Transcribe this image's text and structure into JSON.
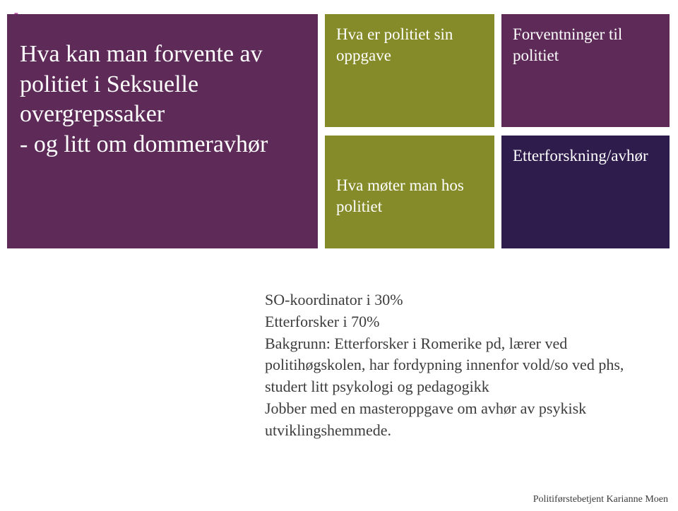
{
  "plus_glyph": "+",
  "title": "Hva kan man forvente av politiet i Seksuelle overgrepssaker\n- og litt om dommeravhør",
  "tiles": {
    "olive_top": "Hva er politiet sin oppgave",
    "purple_top": "Forventninger til politiet",
    "olive_btm": "Hva møter man hos politiet",
    "navy_btm": "Etterforskning/avhør"
  },
  "body": "SO-koordinator i 30%\nEtterforsker i 70%\nBakgrunn: Etterforsker i Romerike pd, lærer ved politihøgskolen, har fordypning innenfor vold/so ved phs, studert litt psykologi og pedagogikk\nJobber med en masteroppgave om avhør av psykisk utviklingshemmede.",
  "footer": "Politiførstebetjent Karianne Moen",
  "colors": {
    "title_bg": "#5e2b59",
    "olive": "#868b2a",
    "purple": "#5e2b59",
    "navy": "#2e1c4d",
    "plus": "#b74aa8",
    "text": "#3c3c3c",
    "white": "#ffffff"
  },
  "fontsizes": {
    "title": 34,
    "tile": 23,
    "body": 22,
    "footer": 14,
    "plus": 44
  }
}
